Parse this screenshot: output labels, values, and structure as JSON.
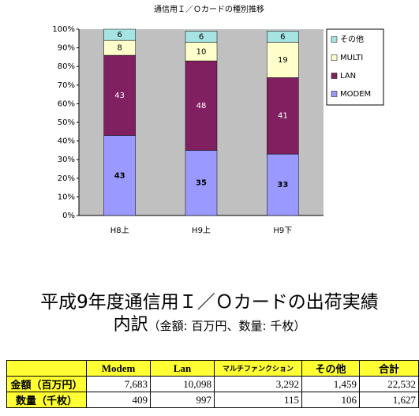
{
  "chart_data": {
    "type": "stacked-bar",
    "title": "通信用Ｉ／Ｏカードの種別推移",
    "categories": [
      "H8上",
      "H9上",
      "H9下"
    ],
    "series": [
      {
        "name": "MODEM",
        "color": "#9999ff",
        "values": [
          43,
          35,
          33
        ]
      },
      {
        "name": "LAN",
        "color": "#802060",
        "values": [
          43,
          48,
          41
        ]
      },
      {
        "name": "MULTI",
        "color": "#ffffcc",
        "values": [
          8,
          10,
          19
        ]
      },
      {
        "name": "その他",
        "color": "#a6e3e3",
        "values": [
          6,
          6,
          6
        ]
      }
    ],
    "ylim": [
      0,
      100
    ],
    "yticks": [
      {
        "value": 0,
        "label": "0%"
      },
      {
        "value": 10,
        "label": "10%"
      },
      {
        "value": 20,
        "label": "20%"
      },
      {
        "value": 30,
        "label": "30%"
      },
      {
        "value": 40,
        "label": "40%"
      },
      {
        "value": 50,
        "label": "50%"
      },
      {
        "value": 60,
        "label": "60%"
      },
      {
        "value": 70,
        "label": "70%"
      },
      {
        "value": 80,
        "label": "80%"
      },
      {
        "value": 90,
        "label": "90%"
      },
      {
        "value": 100,
        "label": "100%"
      }
    ],
    "grid": false,
    "legend": "right"
  },
  "heading": {
    "line1": "平成9年度通信用Ｉ／Ｏカードの出荷実績",
    "line2": "内訳",
    "line2_note": "（金額: 百万円、数量: 千枚）"
  },
  "table": {
    "header": [
      "Modem",
      "Lan",
      "マルチファンクション",
      "その他",
      "合計"
    ],
    "rows": [
      [
        "金額（百万円）",
        "7,683",
        "10,098",
        "3,292",
        "1,459",
        "22,532"
      ],
      [
        "数量（千枚）",
        "409",
        "997",
        "115",
        "106",
        "1,627"
      ]
    ]
  }
}
